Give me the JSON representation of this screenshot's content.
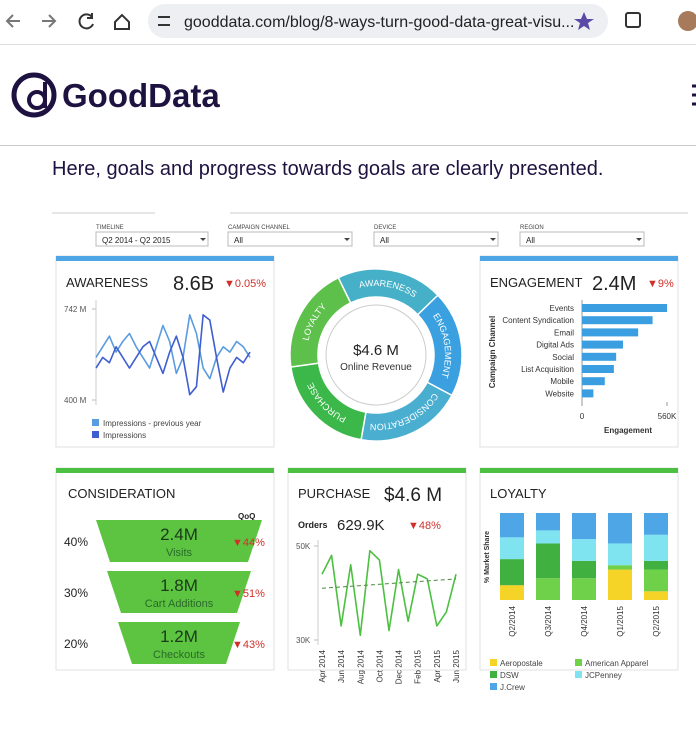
{
  "browser": {
    "url": "gooddata.com/blog/8-ways-turn-good-data-great-visu..."
  },
  "header": {
    "logo": "GoodData"
  },
  "heading": "Here, goals and progress towards goals are clearly presented.",
  "dashboard": {
    "filters": [
      {
        "label": "TIMELINE",
        "value": "Q2 2014 - Q2 2015"
      },
      {
        "label": "CAMPAIGN CHANNEL",
        "value": "All"
      },
      {
        "label": "DEVICE",
        "value": "All"
      },
      {
        "label": "REGION",
        "value": "All"
      }
    ],
    "awareness": {
      "title": "AWARENESS",
      "value": "8.6B",
      "change": "▼0.05%",
      "ylim": [
        400,
        742
      ],
      "yticks": [
        {
          "value": 742,
          "label": "742 M"
        },
        {
          "value": 400,
          "label": "400 M"
        }
      ],
      "series": [
        {
          "name": "Impressions - previous year",
          "color": "#5b9be0",
          "values": [
            560,
            600,
            640,
            580,
            620,
            650,
            600,
            560,
            520,
            600,
            680,
            620,
            500,
            560,
            720,
            650,
            520,
            480,
            560,
            600,
            580,
            620,
            600,
            560
          ]
        },
        {
          "name": "Impressions",
          "color": "#3f5fd0",
          "values": [
            520,
            560,
            540,
            600,
            560,
            520,
            560,
            600,
            620,
            560,
            500,
            580,
            640,
            560,
            420,
            450,
            720,
            700,
            560,
            430,
            520,
            560,
            540,
            580
          ]
        }
      ]
    },
    "funnel": {
      "center_value": "$4.6 M",
      "center_label": "Online Revenue",
      "stages": [
        "AWARENESS",
        "ENGAGEMENT",
        "CONSIDERATION",
        "PURCHASE",
        "LOYALTY"
      ]
    },
    "engagement": {
      "title": "ENGAGEMENT",
      "value": "2.4M",
      "change": "▼9%",
      "categories": [
        "Events",
        "Content Syndication",
        "Email",
        "Digital Ads",
        "Social",
        "List Acquisition",
        "Mobile",
        "Website"
      ],
      "values": [
        560000,
        465000,
        370000,
        270000,
        225000,
        210000,
        150000,
        75000
      ],
      "color": "#3a9ee0",
      "xlim": [
        0,
        560000
      ],
      "xticks": [
        0,
        {
          "value": 560000,
          "label": "560K"
        }
      ],
      "xlabel": "Engagement",
      "ylabel": "Campaign Channel"
    },
    "consideration": {
      "title": "CONSIDERATION",
      "qoq": "QoQ",
      "stages": [
        {
          "value": "2.4M",
          "label": "Visits",
          "share": "40%",
          "change": "▼44%"
        },
        {
          "value": "1.8M",
          "label": "Cart Additions",
          "share": "30%",
          "change": "▼51%"
        },
        {
          "value": "1.2M",
          "label": "Checkouts",
          "share": "20%",
          "change": "▼43%"
        }
      ]
    },
    "purchase": {
      "title": "PURCHASE",
      "value": "$4.6 M",
      "metric": "Orders",
      "metric_value": "629.9K",
      "change": "▼48%",
      "ylim": [
        30000,
        50000
      ],
      "yticks": [
        {
          "value": 50000,
          "label": "50K"
        },
        {
          "value": 30000,
          "label": "30K"
        }
      ],
      "categories": [
        "Apr 2014",
        null,
        "Jun 2014",
        null,
        "Aug 2014",
        null,
        "Oct 2014",
        null,
        "Dec 2014",
        null,
        "Feb 2015",
        null,
        "Apr 2015",
        null,
        "Jun 2015"
      ],
      "values": [
        44000,
        48000,
        33000,
        46000,
        31000,
        49000,
        47000,
        32000,
        45000,
        34000,
        44000,
        43000,
        33000,
        36000,
        44000
      ],
      "trend": [
        41000,
        43000
      ],
      "color": "#4cc040"
    },
    "loyalty": {
      "title": "LOYALTY",
      "ylabel": "% Market Share",
      "ylim": [
        0,
        100
      ],
      "categories": [
        "Q2/2014",
        "Q3/2014",
        "Q4/2014",
        "Q1/2015",
        "Q2/2015"
      ],
      "series": [
        {
          "name": "Aeropostale",
          "color": "#f5d327",
          "values": [
            17,
            0,
            0,
            35,
            10
          ]
        },
        {
          "name": "American Apparel",
          "color": "#6fd04a",
          "values": [
            0,
            25,
            25,
            5,
            25
          ]
        },
        {
          "name": "DSW",
          "color": "#40b040",
          "values": [
            30,
            40,
            20,
            0,
            10
          ]
        },
        {
          "name": "JCPenney",
          "color": "#7fe4f0",
          "values": [
            25,
            15,
            25,
            25,
            30
          ]
        },
        {
          "name": "J.Crew",
          "color": "#4ea6e6",
          "values": [
            28,
            20,
            30,
            35,
            25
          ]
        }
      ]
    }
  }
}
